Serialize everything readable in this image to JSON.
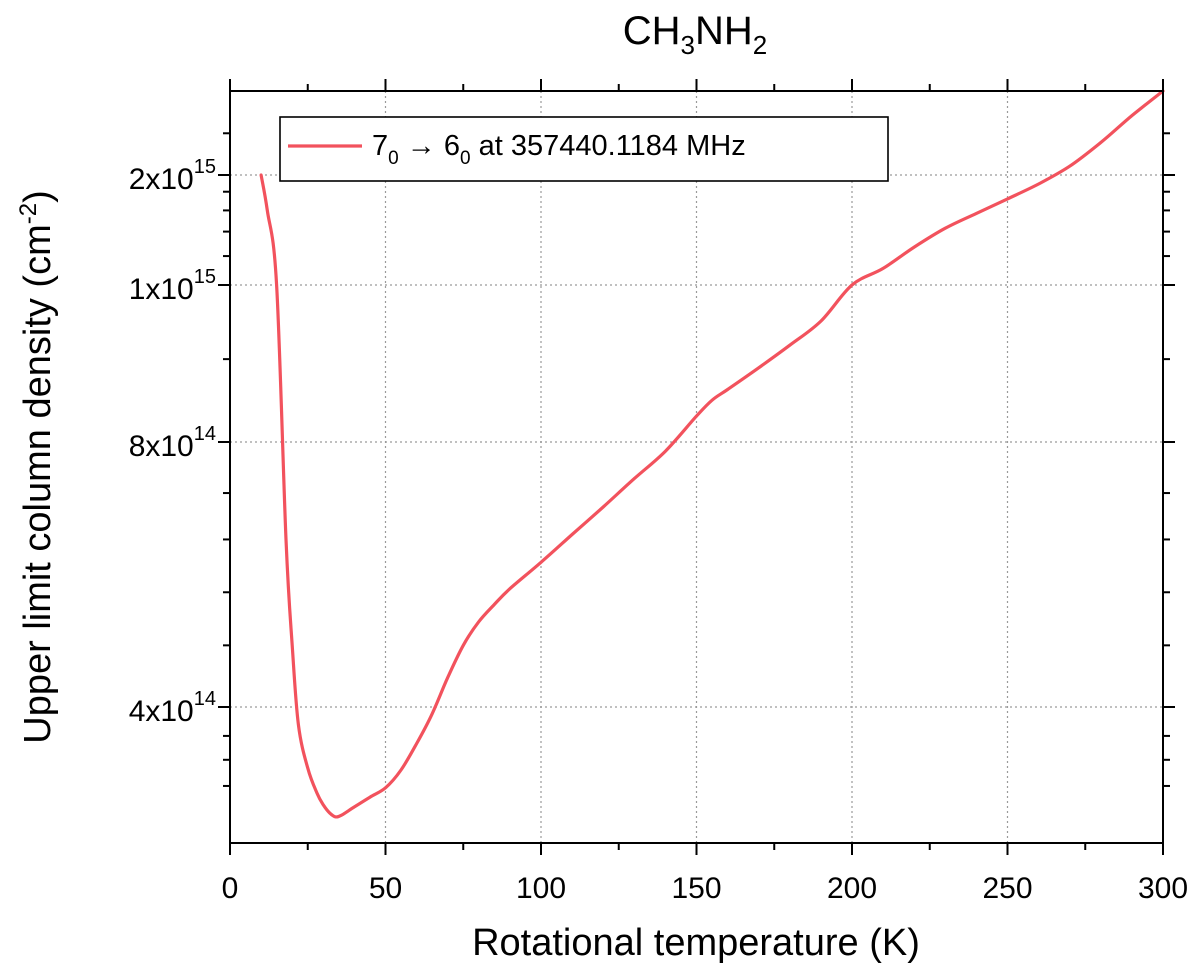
{
  "chart_data": {
    "type": "line",
    "title": {
      "main": "CH",
      "sub1": "3",
      "mid": "NH",
      "sub2": "2"
    },
    "xlabel": "Rotational temperature (K)",
    "ylabel": {
      "main": "Upper limit column density (cm",
      "sup": "-2",
      "close": ")"
    },
    "xlim": [
      0,
      300
    ],
    "ylim": [
      265000000000000,
      2650000000000000
    ],
    "y_scale": "mapped-nonlinear",
    "grid": true,
    "legend_position": "top-left",
    "x_ticks": [
      {
        "value": 0,
        "label": "0"
      },
      {
        "value": 50,
        "label": "50"
      },
      {
        "value": 100,
        "label": "100"
      },
      {
        "value": 150,
        "label": "150"
      },
      {
        "value": 200,
        "label": "200"
      },
      {
        "value": 250,
        "label": "250"
      },
      {
        "value": 300,
        "label": "300"
      }
    ],
    "y_ticks": [
      {
        "value": 400000000000000,
        "mant": "4x10",
        "exp": "14"
      },
      {
        "value": 800000000000000,
        "mant": "8x10",
        "exp": "14"
      },
      {
        "value": 1000000000000000,
        "mant": "1x10",
        "exp": "15"
      },
      {
        "value": 2000000000000000,
        "mant": "2x10",
        "exp": "15"
      }
    ],
    "series": [
      {
        "legend": {
          "part1": "7",
          "sub1": "0",
          "arrow": " → ",
          "part2": "6",
          "sub2": "0",
          "rest": " at 357440.1184 MHz"
        },
        "color": "#f2525d",
        "x": [
          10,
          12,
          15,
          18,
          20,
          22,
          25,
          28,
          30,
          32,
          34,
          36,
          40,
          45,
          50,
          55,
          60,
          65,
          70,
          75,
          80,
          85,
          90,
          100,
          110,
          120,
          130,
          140,
          150,
          155,
          160,
          170,
          180,
          190,
          200,
          210,
          220,
          230,
          240,
          250,
          260,
          270,
          280,
          290,
          300
        ],
        "y": [
          2000000000000000,
          1600000000000000,
          1000000000000000,
          620000000000000,
          470000000000000,
          375000000000000,
          320000000000000,
          292000000000000,
          280000000000000,
          272000000000000,
          268000000000000,
          270000000000000,
          278000000000000,
          288000000000000,
          298000000000000,
          318000000000000,
          350000000000000,
          390000000000000,
          432000000000000,
          470000000000000,
          500000000000000,
          523000000000000,
          545000000000000,
          584000000000000,
          628000000000000,
          675000000000000,
          727000000000000,
          781000000000000,
          830000000000000,
          849000000000000,
          862000000000000,
          889000000000000,
          918000000000000,
          950000000000000,
          1000000000000000,
          1110000000000000,
          1270000000000000,
          1430000000000000,
          1570000000000000,
          1720000000000000,
          1890000000000000,
          2060000000000000,
          2230000000000000,
          2440000000000000,
          2650000000000000
        ]
      }
    ]
  }
}
